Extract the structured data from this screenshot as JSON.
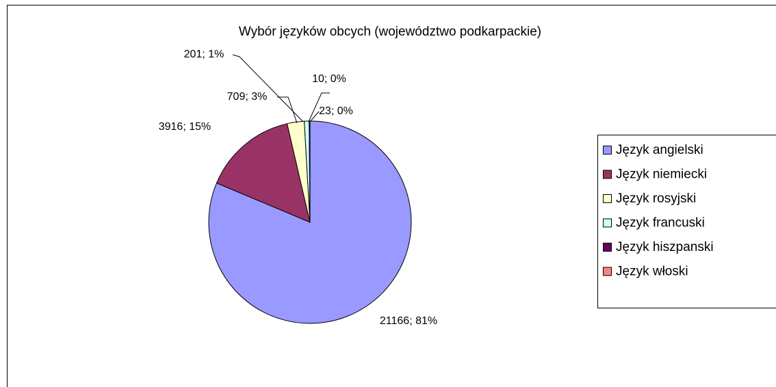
{
  "chart_data": {
    "type": "pie",
    "title": "Wybór języków obcych (województwo podkarpackie)",
    "categories": [
      "Język angielski",
      "Język niemiecki",
      "Język rosyjski",
      "Język francuski",
      "Język hiszpanski",
      "Język włoski"
    ],
    "values": [
      21166,
      3916,
      709,
      201,
      10,
      23
    ],
    "value_labels": [
      "21166; 81%",
      "3916; 15%",
      "709; 3%",
      "201; 1%",
      "10; 0%",
      "23; 0%"
    ],
    "colors": [
      "#9999ff",
      "#993366",
      "#ffffcc",
      "#ccffff",
      "#660066",
      "#ff8080"
    ],
    "legend": "right"
  }
}
